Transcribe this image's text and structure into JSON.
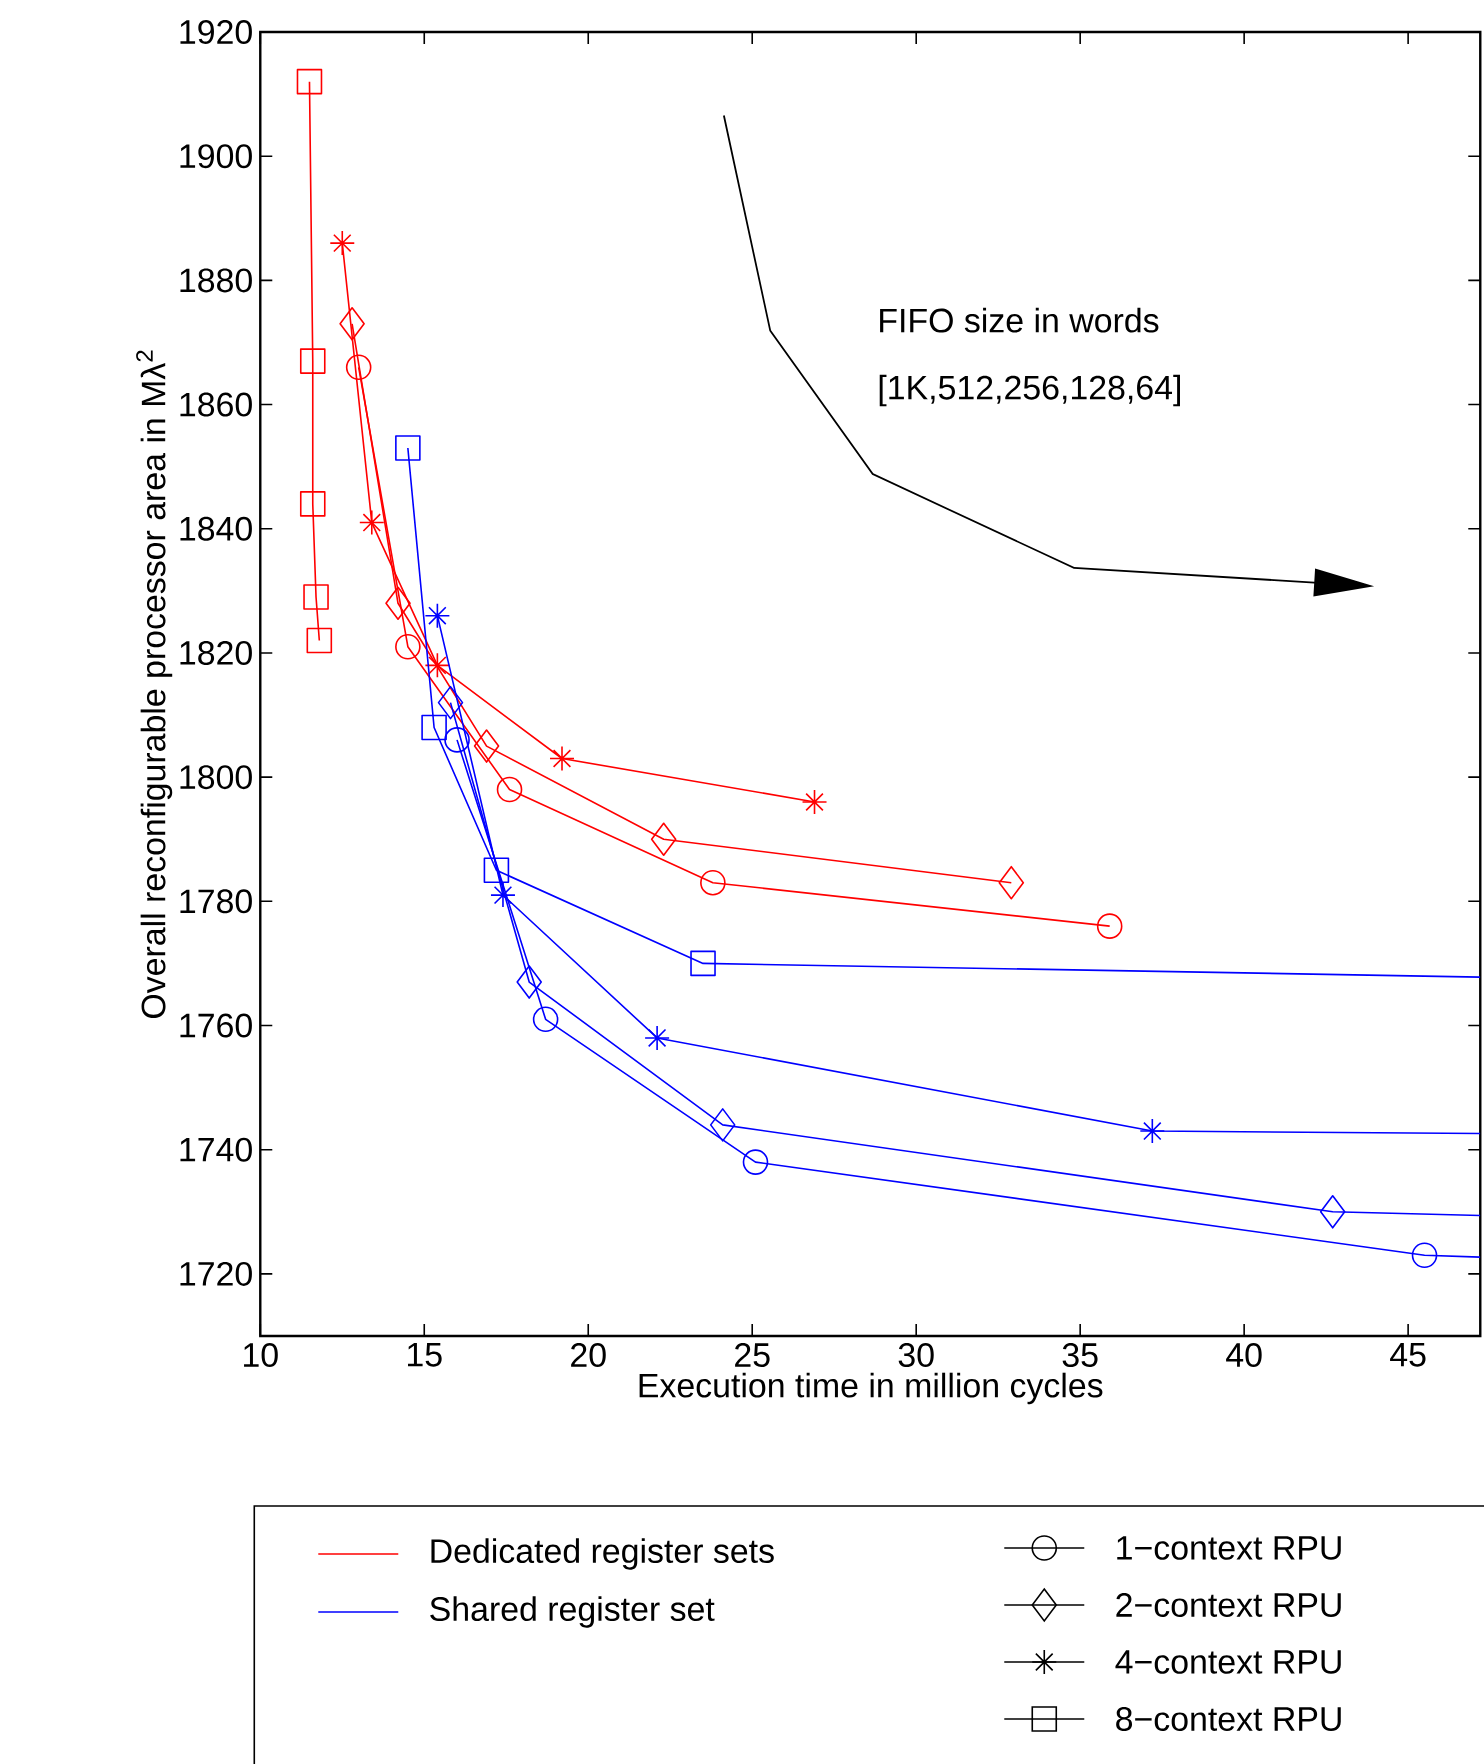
{
  "chart_data": {
    "type": "line",
    "xlabel": "Execution time in million cycles",
    "ylabel": "Overall reconfigurable processor area in Mλ$^{2}$",
    "xlim": [
      10,
      47.2
    ],
    "ylim": [
      1710,
      1920
    ],
    "xticks": [
      10,
      15,
      20,
      25,
      30,
      35,
      40,
      45
    ],
    "yticks": [
      1720,
      1740,
      1760,
      1780,
      1800,
      1820,
      1840,
      1860,
      1880,
      1900,
      1920
    ],
    "grid": false,
    "line_style": "solid",
    "annotations": [
      "FIFO size in words",
      "[1K,512,256,128,64]",
      "Dedicated register sets",
      "Shared register set",
      "1−context RPU",
      "2−context RPU",
      "4−context RPU",
      "8−context RPU"
    ],
    "series": [
      {
        "color": "#ff0000",
        "marker": "circle",
        "x": [
          13.0,
          14.5,
          17.6,
          23.8,
          35.9
        ],
        "values": [
          1866,
          1821,
          1798,
          1783,
          1776
        ]
      },
      {
        "color": "#ff0000",
        "marker": "diamond",
        "x": [
          12.8,
          14.2,
          16.9,
          22.3,
          32.9
        ],
        "values": [
          1873,
          1828,
          1805,
          1790,
          1783
        ]
      },
      {
        "color": "#ff0000",
        "marker": "cross",
        "x": [
          12.5,
          13.4,
          15.4,
          19.2,
          26.9
        ],
        "values": [
          1886,
          1841,
          1818,
          1803,
          1796
        ]
      },
      {
        "color": "#ff0000",
        "marker": "square",
        "x": [
          11.5,
          11.6,
          11.6,
          11.7,
          11.8
        ],
        "values": [
          1912,
          1867,
          1844,
          1829,
          1822
        ]
      },
      {
        "color": "#0000ff",
        "marker": "circle",
        "x": [
          16.0,
          18.7,
          25.1,
          45.5,
          47.2
        ],
        "values": [
          1806,
          1761,
          1738,
          1723,
          1722.7
        ]
      },
      {
        "color": "#0000ff",
        "marker": "diamond",
        "x": [
          15.8,
          18.2,
          24.1,
          42.7,
          47.2
        ],
        "values": [
          1812,
          1767,
          1744,
          1730,
          1729.4
        ]
      },
      {
        "color": "#0000ff",
        "marker": "cross",
        "x": [
          15.4,
          17.4,
          22.1,
          37.2,
          47.2
        ],
        "values": [
          1826,
          1781,
          1758,
          1743,
          1742.6
        ]
      },
      {
        "color": "#0000ff",
        "marker": "square",
        "x": [
          14.5,
          15.3,
          17.2,
          23.5,
          47.2
        ],
        "values": [
          1853,
          1808,
          1785,
          1770,
          1767.8
        ]
      }
    ]
  }
}
